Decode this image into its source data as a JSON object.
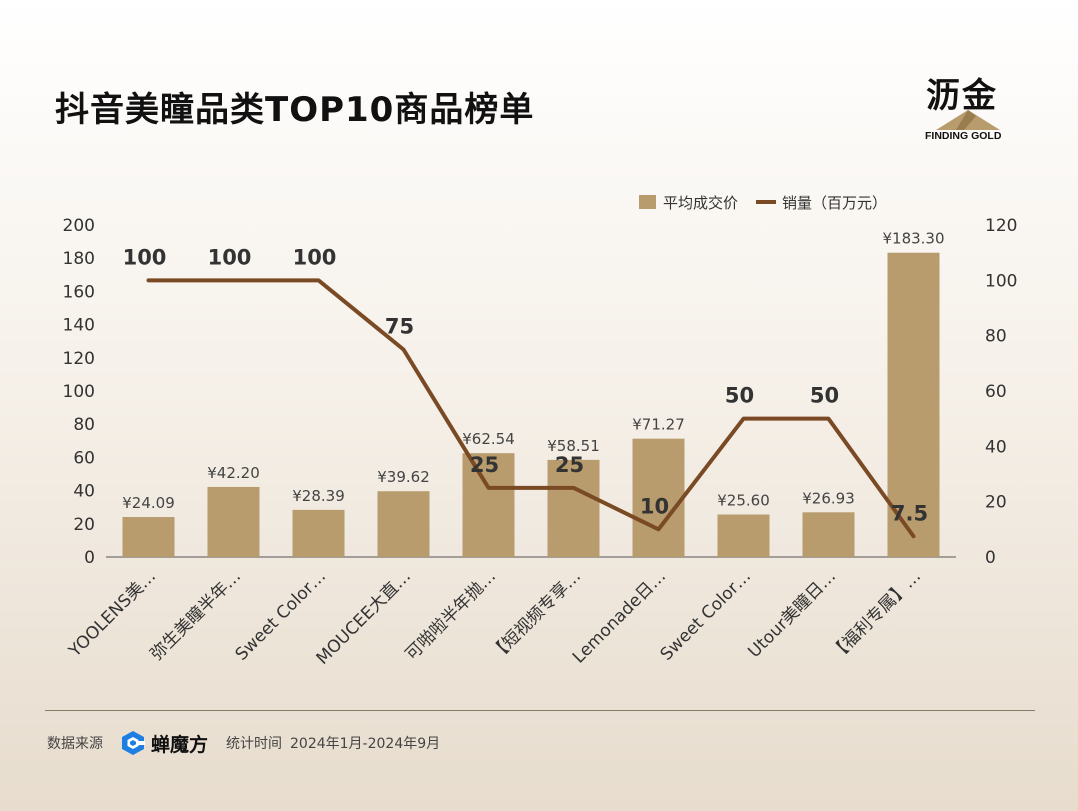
{
  "title": "抖音美瞳品类TOP10商品榜单",
  "logo": {
    "cn": "沥金",
    "en": "FINDING GOLD"
  },
  "footer": {
    "source_label": "数据来源",
    "source_brand": "蝉魔方",
    "time_label": "统计时间",
    "time_range": "2024年1月-2024年9月"
  },
  "colors": {
    "bar": "#b89c6e",
    "line": "#7a4a25",
    "axis": "#333333"
  },
  "chart_data": {
    "type": "bar",
    "categories": [
      "YOOLENS美…",
      "弥生美瞳半年…",
      "Sweet Color…",
      "MOUCEE大直…",
      "可啪啦半年抛…",
      "【短视频专享…",
      "Lemonade日…",
      "Sweet Color…",
      "Utour美瞳日…",
      "【福利专属】…"
    ],
    "legend": [
      "平均成交价",
      "销量（百万元）"
    ],
    "legend_position": "top-right",
    "series": [
      {
        "name": "平均成交价",
        "type": "bar",
        "axis": "left",
        "values": [
          24.09,
          42.2,
          28.39,
          39.62,
          62.54,
          58.51,
          71.27,
          25.6,
          26.93,
          183.3
        ],
        "labels": [
          "¥24.09",
          "¥42.20",
          "¥28.39",
          "¥39.62",
          "¥62.54",
          "¥58.51",
          "¥71.27",
          "¥25.60",
          "¥26.93",
          "¥183.30"
        ]
      },
      {
        "name": "销量（百万元）",
        "type": "line",
        "axis": "right",
        "values": [
          100,
          100,
          100,
          75,
          25,
          25,
          10,
          50,
          50,
          7.5
        ],
        "labels": [
          "100",
          "100",
          "100",
          "75",
          "25",
          "25",
          "10",
          "50",
          "50",
          "7.5"
        ]
      }
    ],
    "y_left": {
      "min": 0,
      "max": 200,
      "ticks": [
        0,
        20,
        40,
        60,
        80,
        100,
        120,
        140,
        160,
        180,
        200
      ]
    },
    "y_right": {
      "min": 0,
      "max": 120,
      "ticks": [
        0,
        20,
        40,
        60,
        80,
        100,
        120
      ]
    },
    "grid": false
  }
}
